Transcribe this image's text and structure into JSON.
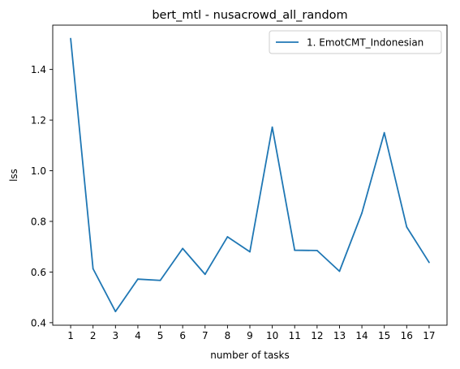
{
  "chart_data": {
    "type": "line",
    "title": "bert_mtl - nusacrowd_all_random",
    "xlabel": "number of tasks",
    "ylabel": "lss",
    "x": [
      1,
      2,
      3,
      4,
      5,
      6,
      7,
      8,
      9,
      10,
      11,
      12,
      13,
      14,
      15,
      16,
      17
    ],
    "xticks": [
      "1",
      "2",
      "3",
      "4",
      "5",
      "6",
      "7",
      "8",
      "9",
      "10",
      "11",
      "12",
      "13",
      "14",
      "15",
      "16",
      "17"
    ],
    "yticks": [
      0.4,
      0.6,
      0.8,
      1.0,
      1.2,
      1.4
    ],
    "ytick_labels": [
      "0.4",
      "0.6",
      "0.8",
      "1.0",
      "1.2",
      "1.4"
    ],
    "xlim": [
      0.2,
      17.8
    ],
    "ylim": [
      0.39,
      1.575
    ],
    "grid": false,
    "legend_position": "top-right",
    "series": [
      {
        "name": "1. EmotCMT_Indonesian",
        "color": "#1f77b4",
        "values": [
          1.522,
          0.613,
          0.444,
          0.572,
          0.567,
          0.693,
          0.591,
          0.739,
          0.68,
          1.172,
          0.686,
          0.685,
          0.603,
          0.833,
          1.15,
          0.778,
          0.638
        ]
      }
    ]
  }
}
